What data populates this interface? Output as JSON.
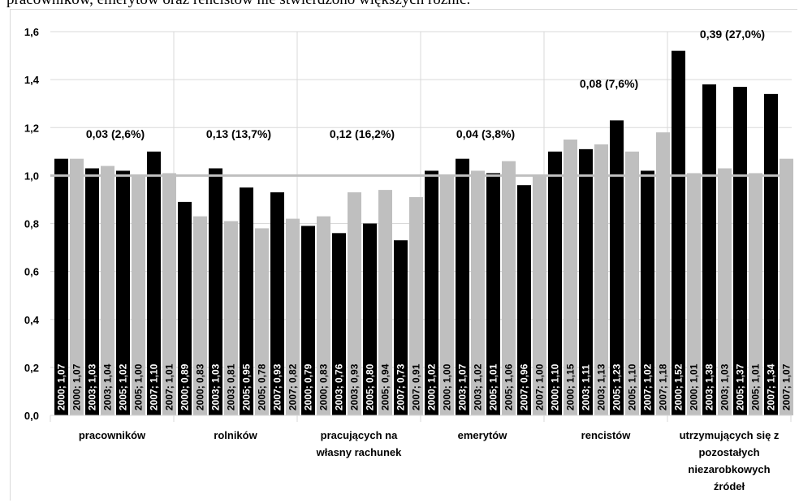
{
  "header_text": "pracowników, emerytów oraz rencistów nie stwierdzono większych różnic.",
  "chart_data": {
    "type": "bar",
    "title": "",
    "xlabel": "",
    "ylabel": "",
    "ylim": [
      0,
      1.6
    ],
    "y_ticks": [
      "0,0",
      "0,2",
      "0,4",
      "0,6",
      "0,8",
      "1,0",
      "1,2",
      "1,4",
      "1,6"
    ],
    "reference_line": 1.0,
    "grid": true,
    "legend": "none",
    "colors": {
      "dark": "#000000",
      "light": "#bfbfbf",
      "reference": "#bfbfbf",
      "grid": "#d9d9d9"
    },
    "groups": [
      {
        "category": "pracowników",
        "category_lines": [
          "pracowników"
        ],
        "annotation": "0,03 (2,6%)",
        "bars": [
          {
            "tone": "dark",
            "value": 1.07,
            "label": "2000; 1,07"
          },
          {
            "tone": "light",
            "value": 1.07,
            "label": "2000; 1,07"
          },
          {
            "tone": "dark",
            "value": 1.03,
            "label": "2003; 1,03"
          },
          {
            "tone": "light",
            "value": 1.04,
            "label": "2003; 1,04"
          },
          {
            "tone": "dark",
            "value": 1.02,
            "label": "2005; 1,02"
          },
          {
            "tone": "light",
            "value": 1.0,
            "label": "2005; 1,00"
          },
          {
            "tone": "dark",
            "value": 1.1,
            "label": "2007; 1,10"
          },
          {
            "tone": "light",
            "value": 1.01,
            "label": "2007; 1,01"
          }
        ]
      },
      {
        "category": "rolników",
        "category_lines": [
          "rolników"
        ],
        "annotation": "0,13 (13,7%)",
        "bars": [
          {
            "tone": "dark",
            "value": 0.89,
            "label": "2000; 0,89"
          },
          {
            "tone": "light",
            "value": 0.83,
            "label": "2000; 0,83"
          },
          {
            "tone": "dark",
            "value": 1.03,
            "label": "2003; 1,03"
          },
          {
            "tone": "light",
            "value": 0.81,
            "label": "2003; 0,81"
          },
          {
            "tone": "dark",
            "value": 0.95,
            "label": "2005; 0,95"
          },
          {
            "tone": "light",
            "value": 0.78,
            "label": "2005; 0,78"
          },
          {
            "tone": "dark",
            "value": 0.93,
            "label": "2007; 0,93"
          },
          {
            "tone": "light",
            "value": 0.82,
            "label": "2007; 0,82"
          }
        ]
      },
      {
        "category": "pracujących na własny rachunek",
        "category_lines": [
          "pracujących na",
          "własny rachunek"
        ],
        "annotation": "0,12 (16,2%)",
        "bars": [
          {
            "tone": "dark",
            "value": 0.79,
            "label": "2000; 0,79"
          },
          {
            "tone": "light",
            "value": 0.83,
            "label": "2000; 0,83"
          },
          {
            "tone": "dark",
            "value": 0.76,
            "label": "2003; 0,76"
          },
          {
            "tone": "light",
            "value": 0.93,
            "label": "2003; 0,93"
          },
          {
            "tone": "dark",
            "value": 0.8,
            "label": "2005; 0,80"
          },
          {
            "tone": "light",
            "value": 0.94,
            "label": "2005; 0,94"
          },
          {
            "tone": "dark",
            "value": 0.73,
            "label": "2007; 0,73"
          },
          {
            "tone": "light",
            "value": 0.91,
            "label": "2007; 0,91"
          }
        ]
      },
      {
        "category": "emerytów",
        "category_lines": [
          "emerytów"
        ],
        "annotation": "0,04 (3,8%)",
        "bars": [
          {
            "tone": "dark",
            "value": 1.02,
            "label": "2000; 1,02"
          },
          {
            "tone": "light",
            "value": 1.0,
            "label": "2000; 1,00"
          },
          {
            "tone": "dark",
            "value": 1.07,
            "label": "2003; 1,07"
          },
          {
            "tone": "light",
            "value": 1.02,
            "label": "2003; 1,02"
          },
          {
            "tone": "dark",
            "value": 1.01,
            "label": "2005; 1,01"
          },
          {
            "tone": "light",
            "value": 1.06,
            "label": "2005; 1,06"
          },
          {
            "tone": "dark",
            "value": 0.96,
            "label": "2007; 0,96"
          },
          {
            "tone": "light",
            "value": 1.0,
            "label": "2007; 1,00"
          }
        ]
      },
      {
        "category": "rencistów",
        "category_lines": [
          "rencistów"
        ],
        "annotation": "0,08 (7,6%)",
        "bars": [
          {
            "tone": "dark",
            "value": 1.1,
            "label": "2000; 1,10"
          },
          {
            "tone": "light",
            "value": 1.15,
            "label": "2000; 1,15"
          },
          {
            "tone": "dark",
            "value": 1.11,
            "label": "2003; 1,11"
          },
          {
            "tone": "light",
            "value": 1.13,
            "label": "2003; 1,13"
          },
          {
            "tone": "dark",
            "value": 1.23,
            "label": "2005; 1,23"
          },
          {
            "tone": "light",
            "value": 1.1,
            "label": "2005; 1,10"
          },
          {
            "tone": "dark",
            "value": 1.02,
            "label": "2007; 1,02"
          },
          {
            "tone": "light",
            "value": 1.18,
            "label": "2007; 1,18"
          }
        ]
      },
      {
        "category": "utrzymujących się z pozostałych niezarobkowych źródeł",
        "category_lines": [
          "utrzymujących się z",
          "pozostałych",
          "niezarobkowych",
          "źródeł"
        ],
        "annotation": "0,39 (27,0%)",
        "bars": [
          {
            "tone": "dark",
            "value": 1.52,
            "label": "2000; 1,52"
          },
          {
            "tone": "light",
            "value": 1.01,
            "label": "2000; 1,01"
          },
          {
            "tone": "dark",
            "value": 1.38,
            "label": "2003; 1,38"
          },
          {
            "tone": "light",
            "value": 1.03,
            "label": "2003; 1,03"
          },
          {
            "tone": "dark",
            "value": 1.37,
            "label": "2005; 1,37"
          },
          {
            "tone": "light",
            "value": 1.01,
            "label": "2005; 1,01"
          },
          {
            "tone": "dark",
            "value": 1.34,
            "label": "2007; 1,34"
          },
          {
            "tone": "light",
            "value": 1.07,
            "label": "2007; 1,07"
          }
        ]
      }
    ]
  }
}
